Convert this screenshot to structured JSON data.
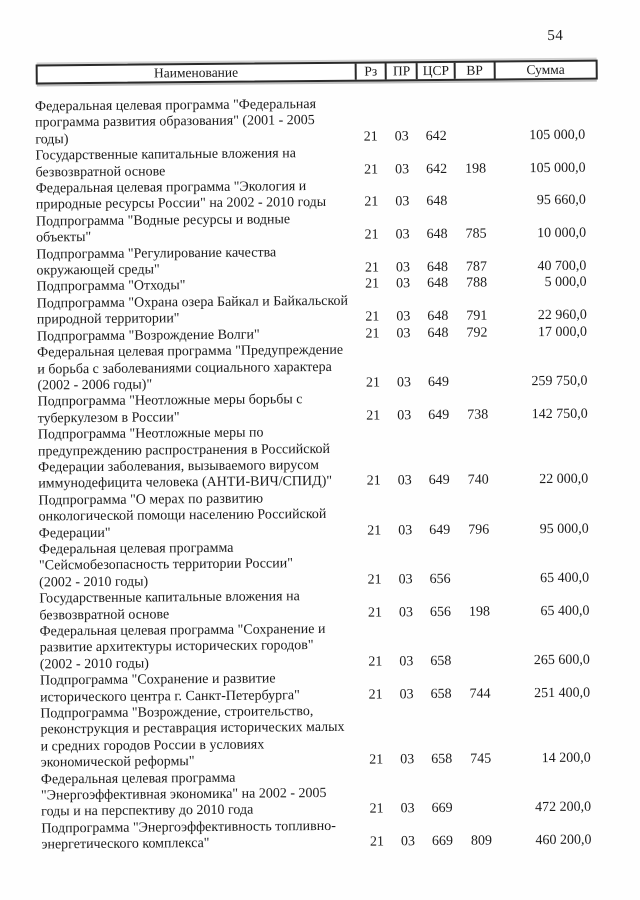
{
  "page": {
    "number": "54"
  },
  "table": {
    "columns": {
      "name": "Наименование",
      "rz": "Рз",
      "pr": "ПР",
      "csr": "ЦСР",
      "vr": "ВР",
      "sum": "Сумма"
    },
    "rows": [
      {
        "name": "Федеральная целевая программа \"Федеральная\nпрограмма развития образования\" (2001 - 2005\nгоды)",
        "rz": "21",
        "pr": "03",
        "csr": "642",
        "vr": "",
        "sum": "105 000,0"
      },
      {
        "name": "Государственные капитальные вложения на\nбезвозвратной основе",
        "rz": "21",
        "pr": "03",
        "csr": "642",
        "vr": "198",
        "sum": "105 000,0"
      },
      {
        "name": "Федеральная целевая программа \"Экология и\nприродные ресурсы России\" на 2002 - 2010 годы",
        "rz": "21",
        "pr": "03",
        "csr": "648",
        "vr": "",
        "sum": "95 660,0"
      },
      {
        "name": "Подпрограмма \"Водные ресурсы и водные\nобъекты\"",
        "rz": "21",
        "pr": "03",
        "csr": "648",
        "vr": "785",
        "sum": "10 000,0"
      },
      {
        "name": "Подпрограмма \"Регулирование качества\nокружающей среды\"",
        "rz": "21",
        "pr": "03",
        "csr": "648",
        "vr": "787",
        "sum": "40 700,0"
      },
      {
        "name": "Подпрограмма \"Отходы\"",
        "rz": "21",
        "pr": "03",
        "csr": "648",
        "vr": "788",
        "sum": "5 000,0"
      },
      {
        "name": "Подпрограмма \"Охрана озера Байкал и Байкальской\nприродной территории\"",
        "rz": "21",
        "pr": "03",
        "csr": "648",
        "vr": "791",
        "sum": "22 960,0"
      },
      {
        "name": "Подпрограмма \"Возрождение Волги\"",
        "rz": "21",
        "pr": "03",
        "csr": "648",
        "vr": "792",
        "sum": "17 000,0"
      },
      {
        "name": "Федеральная целевая программа \"Предупреждение\nи борьба с заболеваниями социального характера\n(2002 - 2006 годы)\"",
        "rz": "21",
        "pr": "03",
        "csr": "649",
        "vr": "",
        "sum": "259 750,0"
      },
      {
        "name": "Подпрограмма \"Неотложные меры борьбы с\nтуберкулезом в России\"",
        "rz": "21",
        "pr": "03",
        "csr": "649",
        "vr": "738",
        "sum": "142 750,0"
      },
      {
        "name": "Подпрограмма \"Неотложные меры по\nпредупреждению распространения в Российской\nФедерации заболевания, вызываемого вирусом\nиммунодефицита человека (АНТИ-ВИЧ/СПИД)\"",
        "rz": "21",
        "pr": "03",
        "csr": "649",
        "vr": "740",
        "sum": "22 000,0"
      },
      {
        "name": "Подпрограмма \"О мерах по развитию\nонкологической помощи населению Российской\nФедерации\"",
        "rz": "21",
        "pr": "03",
        "csr": "649",
        "vr": "796",
        "sum": "95 000,0"
      },
      {
        "name": "Федеральная целевая программа\n\"Сейсмобезопасность территории России\"\n(2002 - 2010 годы)",
        "rz": "21",
        "pr": "03",
        "csr": "656",
        "vr": "",
        "sum": "65 400,0"
      },
      {
        "name": "Государственные капитальные вложения на\nбезвозвратной основе",
        "rz": "21",
        "pr": "03",
        "csr": "656",
        "vr": "198",
        "sum": "65 400,0"
      },
      {
        "name": "Федеральная целевая программа \"Сохранение и\nразвитие архитектуры исторических городов\"\n(2002 - 2010 годы)",
        "rz": "21",
        "pr": "03",
        "csr": "658",
        "vr": "",
        "sum": "265 600,0"
      },
      {
        "name": "Подпрограмма \"Сохранение и развитие\nисторического центра г. Санкт-Петербурга\"",
        "rz": "21",
        "pr": "03",
        "csr": "658",
        "vr": "744",
        "sum": "251 400,0"
      },
      {
        "name": "Подпрограмма \"Возрождение, строительство,\nреконструкция и реставрация исторических малых\nи средних городов России в условиях\nэкономической реформы\"",
        "rz": "21",
        "pr": "03",
        "csr": "658",
        "vr": "745",
        "sum": "14 200,0"
      },
      {
        "name": "Федеральная целевая программа\n\"Энергоэффективная экономика\" на 2002 - 2005\nгоды и на перспективу до 2010 года",
        "rz": "21",
        "pr": "03",
        "csr": "669",
        "vr": "",
        "sum": "472 200,0"
      },
      {
        "name": "Подпрограмма \"Энергоэффективность топливно-\nэнергетического комплекса\"",
        "rz": "21",
        "pr": "03",
        "csr": "669",
        "vr": "809",
        "sum": "460 200,0"
      }
    ]
  }
}
